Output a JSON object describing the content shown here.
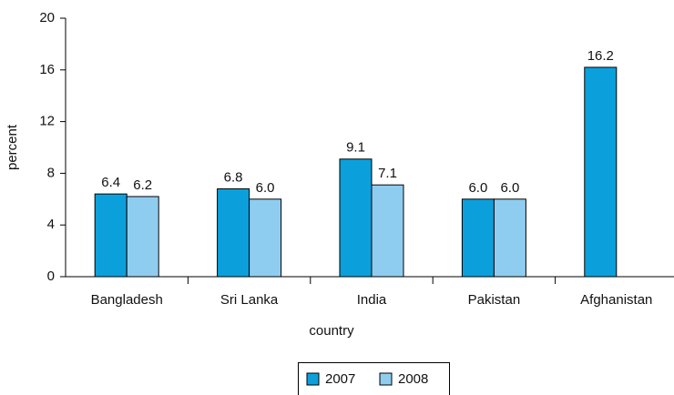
{
  "chart_data": {
    "type": "bar",
    "x_label": "country",
    "y_label": "percent",
    "categories": [
      "Bangladesh",
      "Sri Lanka",
      "India",
      "Pakistan",
      "Afghanistan"
    ],
    "series": [
      {
        "name": "2007",
        "color": "#0ba0dc",
        "values": [
          6.4,
          6.8,
          9.1,
          6.0,
          16.2
        ],
        "value_labels": [
          "6.4",
          "6.8",
          "9.1",
          "6.0",
          "16.2"
        ]
      },
      {
        "name": "2008",
        "color": "#8fcdf0",
        "values": [
          6.2,
          6.0,
          7.1,
          6.0,
          null
        ],
        "value_labels": [
          "6.2",
          "6.0",
          "7.1",
          "6.0",
          null
        ]
      }
    ],
    "ylim": [
      0,
      20
    ],
    "yticks": [
      0,
      4,
      8,
      12,
      16,
      20
    ],
    "grid": false,
    "legend": "bottom"
  }
}
